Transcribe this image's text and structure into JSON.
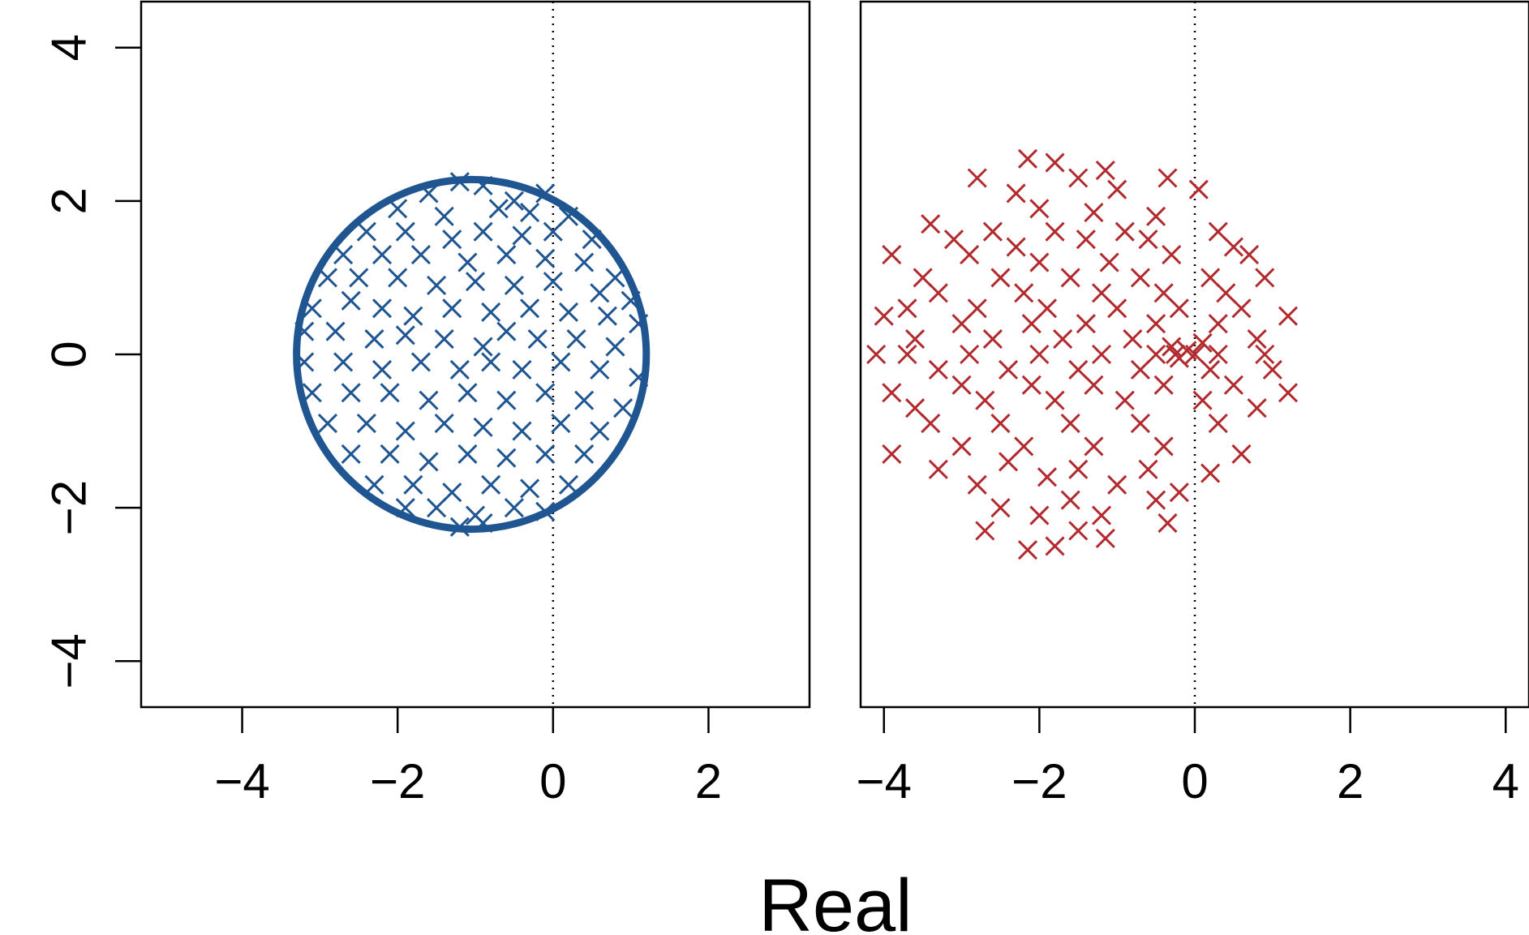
{
  "chart_data": [
    {
      "type": "scatter",
      "title": "",
      "xlabel": "",
      "ylabel": "",
      "xlim": [
        -5.3,
        3.3
      ],
      "ylim": [
        -4.6,
        4.6
      ],
      "xticks": [
        "−4",
        "−2",
        "0",
        "2"
      ],
      "xtick_values": [
        -4,
        -2,
        0,
        2
      ],
      "yticks": [
        "−4",
        "−2",
        "0",
        "2",
        "4"
      ],
      "ytick_values": [
        -4,
        -2,
        0,
        2,
        4
      ],
      "grid": false,
      "reference_line": {
        "x": 0,
        "style": "dotted"
      },
      "circle": {
        "center": [
          -1.05,
          0
        ],
        "radius": 2.25,
        "color": "#1f5591"
      },
      "marker": "x",
      "color": "#1f5591",
      "points": [
        [
          -1.2,
          2.25
        ],
        [
          -0.9,
          2.2
        ],
        [
          -0.5,
          2.0
        ],
        [
          -0.1,
          2.1
        ],
        [
          -1.6,
          2.1
        ],
        [
          -2.0,
          1.9
        ],
        [
          -1.4,
          1.8
        ],
        [
          -0.7,
          1.9
        ],
        [
          -0.3,
          1.85
        ],
        [
          0.2,
          1.8
        ],
        [
          -2.4,
          1.6
        ],
        [
          -1.9,
          1.6
        ],
        [
          -1.3,
          1.5
        ],
        [
          -0.9,
          1.6
        ],
        [
          -0.4,
          1.55
        ],
        [
          0.0,
          1.6
        ],
        [
          0.5,
          1.5
        ],
        [
          -2.7,
          1.3
        ],
        [
          -2.2,
          1.3
        ],
        [
          -1.7,
          1.3
        ],
        [
          -1.1,
          1.2
        ],
        [
          -0.6,
          1.3
        ],
        [
          -0.1,
          1.25
        ],
        [
          0.4,
          1.2
        ],
        [
          0.8,
          1.0
        ],
        [
          -2.9,
          1.0
        ],
        [
          -2.5,
          1.0
        ],
        [
          -2.0,
          1.0
        ],
        [
          -1.5,
          0.9
        ],
        [
          -1.0,
          0.95
        ],
        [
          -0.5,
          0.9
        ],
        [
          0.0,
          0.95
        ],
        [
          0.6,
          0.8
        ],
        [
          1.0,
          0.7
        ],
        [
          -3.1,
          0.6
        ],
        [
          -2.6,
          0.7
        ],
        [
          -2.2,
          0.6
        ],
        [
          -1.8,
          0.5
        ],
        [
          -1.3,
          0.6
        ],
        [
          -0.8,
          0.55
        ],
        [
          -0.3,
          0.6
        ],
        [
          0.2,
          0.55
        ],
        [
          0.7,
          0.5
        ],
        [
          1.1,
          0.4
        ],
        [
          -3.2,
          0.3
        ],
        [
          -2.8,
          0.3
        ],
        [
          -2.3,
          0.2
        ],
        [
          -1.9,
          0.25
        ],
        [
          -1.4,
          0.2
        ],
        [
          -0.9,
          0.1
        ],
        [
          -0.6,
          0.3
        ],
        [
          -0.2,
          0.2
        ],
        [
          0.3,
          0.2
        ],
        [
          0.8,
          0.1
        ],
        [
          -3.2,
          -0.1
        ],
        [
          -2.7,
          -0.1
        ],
        [
          -2.2,
          -0.2
        ],
        [
          -1.7,
          -0.1
        ],
        [
          -1.2,
          -0.2
        ],
        [
          -0.8,
          -0.1
        ],
        [
          -0.4,
          -0.2
        ],
        [
          0.1,
          -0.1
        ],
        [
          0.6,
          -0.2
        ],
        [
          1.1,
          -0.3
        ],
        [
          -3.1,
          -0.5
        ],
        [
          -2.6,
          -0.5
        ],
        [
          -2.1,
          -0.5
        ],
        [
          -1.6,
          -0.6
        ],
        [
          -1.1,
          -0.5
        ],
        [
          -0.6,
          -0.6
        ],
        [
          -0.1,
          -0.5
        ],
        [
          0.4,
          -0.6
        ],
        [
          0.9,
          -0.7
        ],
        [
          -2.9,
          -0.9
        ],
        [
          -2.4,
          -0.9
        ],
        [
          -1.9,
          -1.0
        ],
        [
          -1.4,
          -0.9
        ],
        [
          -0.9,
          -0.95
        ],
        [
          -0.4,
          -1.0
        ],
        [
          0.1,
          -0.9
        ],
        [
          0.6,
          -1.0
        ],
        [
          -2.6,
          -1.3
        ],
        [
          -2.1,
          -1.3
        ],
        [
          -1.6,
          -1.4
        ],
        [
          -1.1,
          -1.3
        ],
        [
          -0.6,
          -1.35
        ],
        [
          -0.1,
          -1.3
        ],
        [
          0.4,
          -1.3
        ],
        [
          -2.3,
          -1.7
        ],
        [
          -1.8,
          -1.7
        ],
        [
          -1.3,
          -1.8
        ],
        [
          -0.8,
          -1.7
        ],
        [
          -0.3,
          -1.75
        ],
        [
          0.2,
          -1.7
        ],
        [
          -1.9,
          -2.0
        ],
        [
          -1.5,
          -2.0
        ],
        [
          -1.0,
          -2.1
        ],
        [
          -0.5,
          -2.0
        ],
        [
          -0.1,
          -2.05
        ],
        [
          -1.2,
          -2.25
        ],
        [
          -0.9,
          -2.2
        ]
      ]
    },
    {
      "type": "scatter",
      "title": "",
      "xlabel": "",
      "ylabel": "",
      "xlim": [
        -4.3,
        4.3
      ],
      "ylim": [
        -4.6,
        4.6
      ],
      "xticks": [
        "−4",
        "−2",
        "0",
        "2",
        "4"
      ],
      "xtick_values": [
        -4,
        -2,
        0,
        2,
        4
      ],
      "grid": false,
      "reference_line": {
        "x": 0,
        "style": "dotted"
      },
      "marker": "x",
      "color": "#b22a2e",
      "points": [
        [
          -2.15,
          2.55
        ],
        [
          -1.8,
          2.5
        ],
        [
          -1.15,
          2.4
        ],
        [
          -2.8,
          2.3
        ],
        [
          -1.5,
          2.3
        ],
        [
          -0.35,
          2.3
        ],
        [
          -2.3,
          2.1
        ],
        [
          -1.0,
          2.15
        ],
        [
          0.05,
          2.15
        ],
        [
          -2.0,
          1.9
        ],
        [
          -1.3,
          1.85
        ],
        [
          -0.5,
          1.8
        ],
        [
          0.3,
          1.6
        ],
        [
          -3.4,
          1.7
        ],
        [
          -2.6,
          1.6
        ],
        [
          -1.8,
          1.6
        ],
        [
          -0.9,
          1.6
        ],
        [
          -3.1,
          1.5
        ],
        [
          -2.3,
          1.4
        ],
        [
          -1.4,
          1.5
        ],
        [
          -0.6,
          1.5
        ],
        [
          0.5,
          1.4
        ],
        [
          -3.9,
          1.3
        ],
        [
          -2.9,
          1.3
        ],
        [
          -2.0,
          1.2
        ],
        [
          -1.1,
          1.2
        ],
        [
          -0.3,
          1.3
        ],
        [
          0.7,
          1.3
        ],
        [
          -3.5,
          1.0
        ],
        [
          -2.5,
          1.0
        ],
        [
          -1.6,
          1.0
        ],
        [
          -0.7,
          1.0
        ],
        [
          0.2,
          1.0
        ],
        [
          0.9,
          1.0
        ],
        [
          -3.3,
          0.8
        ],
        [
          -2.2,
          0.8
        ],
        [
          -1.2,
          0.8
        ],
        [
          -0.4,
          0.8
        ],
        [
          0.4,
          0.8
        ],
        [
          -3.7,
          0.6
        ],
        [
          -2.8,
          0.6
        ],
        [
          -1.9,
          0.6
        ],
        [
          -1.0,
          0.6
        ],
        [
          -0.2,
          0.6
        ],
        [
          0.6,
          0.6
        ],
        [
          -4.0,
          0.5
        ],
        [
          -3.0,
          0.4
        ],
        [
          -2.1,
          0.4
        ],
        [
          -1.4,
          0.4
        ],
        [
          -0.5,
          0.4
        ],
        [
          0.3,
          0.4
        ],
        [
          1.2,
          0.5
        ],
        [
          -3.6,
          0.2
        ],
        [
          -2.6,
          0.2
        ],
        [
          -1.7,
          0.2
        ],
        [
          -0.8,
          0.2
        ],
        [
          -0.3,
          0.1
        ],
        [
          0.1,
          0.15
        ],
        [
          0.8,
          0.2
        ],
        [
          -4.1,
          0.0
        ],
        [
          -3.7,
          0.0
        ],
        [
          -2.9,
          0.0
        ],
        [
          -2.0,
          0.0
        ],
        [
          -1.2,
          0.0
        ],
        [
          -0.5,
          0.0
        ],
        [
          -0.2,
          -0.05
        ],
        [
          -0.1,
          0.05
        ],
        [
          -0.25,
          0.0
        ],
        [
          0.0,
          0.0
        ],
        [
          0.3,
          0.0
        ],
        [
          0.9,
          0.0
        ],
        [
          -3.3,
          -0.2
        ],
        [
          -2.4,
          -0.2
        ],
        [
          -1.5,
          -0.2
        ],
        [
          -0.7,
          -0.2
        ],
        [
          0.2,
          -0.2
        ],
        [
          1.0,
          -0.2
        ],
        [
          -3.9,
          -0.5
        ],
        [
          -3.0,
          -0.4
        ],
        [
          -2.1,
          -0.4
        ],
        [
          -1.3,
          -0.4
        ],
        [
          -0.4,
          -0.4
        ],
        [
          0.5,
          -0.4
        ],
        [
          1.2,
          -0.5
        ],
        [
          -3.6,
          -0.7
        ],
        [
          -2.7,
          -0.6
        ],
        [
          -1.8,
          -0.6
        ],
        [
          -0.9,
          -0.6
        ],
        [
          0.1,
          -0.6
        ],
        [
          0.8,
          -0.7
        ],
        [
          -3.4,
          -0.9
        ],
        [
          -2.5,
          -0.9
        ],
        [
          -1.6,
          -0.9
        ],
        [
          -0.7,
          -0.9
        ],
        [
          0.3,
          -0.9
        ],
        [
          -3.9,
          -1.3
        ],
        [
          -3.0,
          -1.2
        ],
        [
          -2.2,
          -1.2
        ],
        [
          -1.3,
          -1.2
        ],
        [
          -0.4,
          -1.2
        ],
        [
          0.6,
          -1.3
        ],
        [
          -3.3,
          -1.5
        ],
        [
          -2.4,
          -1.4
        ],
        [
          -1.5,
          -1.5
        ],
        [
          -0.6,
          -1.5
        ],
        [
          0.2,
          -1.55
        ],
        [
          -2.8,
          -1.7
        ],
        [
          -1.9,
          -1.6
        ],
        [
          -1.0,
          -1.7
        ],
        [
          -0.2,
          -1.8
        ],
        [
          -2.5,
          -2.0
        ],
        [
          -1.6,
          -1.9
        ],
        [
          -0.5,
          -1.9
        ],
        [
          -2.0,
          -2.1
        ],
        [
          -1.2,
          -2.1
        ],
        [
          -0.35,
          -2.2
        ],
        [
          -2.7,
          -2.3
        ],
        [
          -1.5,
          -2.3
        ],
        [
          -1.15,
          -2.4
        ],
        [
          -2.15,
          -2.55
        ],
        [
          -1.8,
          -2.5
        ]
      ]
    }
  ],
  "shared": {
    "xlabel": "Real"
  }
}
